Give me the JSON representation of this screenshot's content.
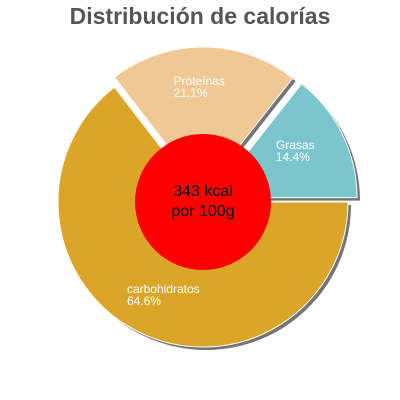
{
  "chart_data": {
    "type": "pie",
    "title": "Distribución de calorías",
    "categories": [
      "Grasas",
      "Proteínas",
      "carbohidratos"
    ],
    "values": [
      14.4,
      21.1,
      64.6
    ],
    "value_labels": [
      "14.4%",
      "21.1%",
      "64.6%"
    ],
    "colors": [
      "#7bc5cd",
      "#efc893",
      "#dba527"
    ],
    "center_text": [
      "343 kcal",
      "por 100g"
    ],
    "center_color": "#ff0000"
  }
}
